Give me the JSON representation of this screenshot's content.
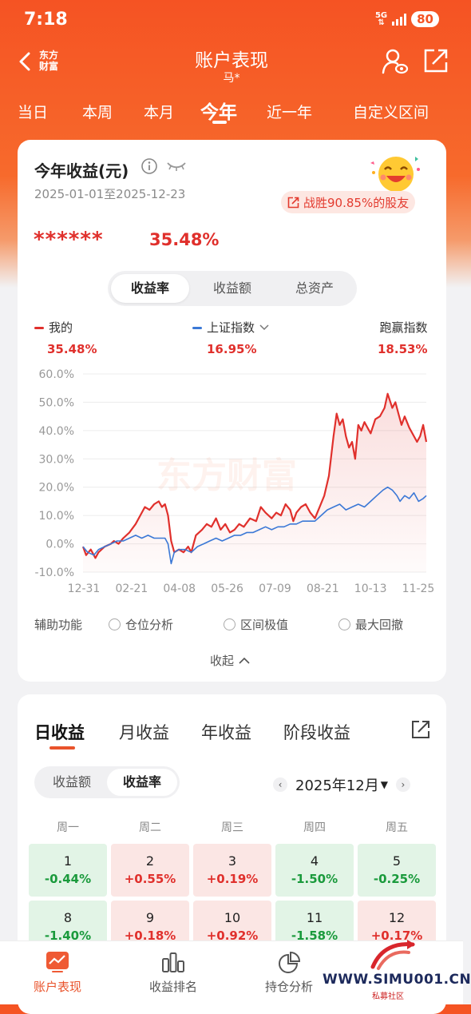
{
  "status": {
    "time": "7:18",
    "network": "5G",
    "battery": "80"
  },
  "nav": {
    "logo": "东方财富",
    "title": "账户表现",
    "subtitle": "马*"
  },
  "period_tabs": [
    {
      "label": "当日"
    },
    {
      "label": "本周"
    },
    {
      "label": "本月"
    },
    {
      "label": "今年"
    },
    {
      "label": "近一年"
    },
    {
      "label": "自定义区间"
    }
  ],
  "summary": {
    "title": "今年收益(元)",
    "date_range": "2025-01-01至2025-12-23",
    "beat_text": "战胜90.85%的股友",
    "masked_amount": "******",
    "return_pct": "35.48%"
  },
  "metric_toggle": [
    "收益率",
    "收益额",
    "总资产"
  ],
  "legend": [
    {
      "label": "我的",
      "value": "35.48%",
      "color": "#e0302c"
    },
    {
      "label": "上证指数",
      "value": "16.95%",
      "color": "#3b78d6"
    },
    {
      "label": "跑赢指数",
      "value": "18.53%"
    }
  ],
  "chart_data": {
    "type": "line",
    "y_tick_labels": [
      "60.0%",
      "50.0%",
      "40.0%",
      "30.0%",
      "20.0%",
      "10.0%",
      "0.0%",
      "-10.0%"
    ],
    "ylim": [
      -10,
      60
    ],
    "x_tick_labels": [
      "12-31",
      "02-21",
      "04-08",
      "05-26",
      "07-09",
      "08-21",
      "10-13",
      "11-25"
    ],
    "watermark": "东方财富",
    "series": [
      {
        "name": "我的",
        "color": "#e0302c",
        "points": [
          [
            0,
            -1
          ],
          [
            2,
            -4
          ],
          [
            5,
            -2
          ],
          [
            8,
            -5
          ],
          [
            10,
            -3
          ],
          [
            14,
            -1
          ],
          [
            18,
            0
          ],
          [
            20,
            1
          ],
          [
            23,
            0
          ],
          [
            26,
            2
          ],
          [
            30,
            4
          ],
          [
            34,
            7
          ],
          [
            37,
            10
          ],
          [
            40,
            13
          ],
          [
            43,
            12
          ],
          [
            46,
            14
          ],
          [
            49,
            15
          ],
          [
            51,
            13
          ],
          [
            53,
            14
          ],
          [
            55,
            10
          ],
          [
            57,
            1
          ],
          [
            59,
            -3
          ],
          [
            62,
            -2
          ],
          [
            65,
            -3
          ],
          [
            68,
            -1
          ],
          [
            70,
            -3
          ],
          [
            73,
            3
          ],
          [
            77,
            5
          ],
          [
            80,
            7
          ],
          [
            83,
            6
          ],
          [
            86,
            9
          ],
          [
            89,
            5
          ],
          [
            92,
            7
          ],
          [
            95,
            4
          ],
          [
            98,
            5
          ],
          [
            101,
            7
          ],
          [
            104,
            6
          ],
          [
            108,
            9
          ],
          [
            112,
            8
          ],
          [
            115,
            13
          ],
          [
            118,
            11
          ],
          [
            122,
            9
          ],
          [
            125,
            11
          ],
          [
            128,
            10
          ],
          [
            131,
            14
          ],
          [
            134,
            12
          ],
          [
            136,
            8
          ],
          [
            138,
            11
          ],
          [
            141,
            13
          ],
          [
            144,
            14
          ],
          [
            147,
            11
          ],
          [
            150,
            9
          ],
          [
            153,
            13
          ],
          [
            156,
            17
          ],
          [
            159,
            24
          ],
          [
            162,
            38
          ],
          [
            164,
            46
          ],
          [
            166,
            42
          ],
          [
            168,
            44
          ],
          [
            170,
            38
          ],
          [
            172,
            34
          ],
          [
            174,
            36
          ],
          [
            176,
            30
          ],
          [
            178,
            42
          ],
          [
            180,
            40
          ],
          [
            182,
            43
          ],
          [
            184,
            41
          ],
          [
            186,
            39
          ],
          [
            189,
            44
          ],
          [
            192,
            45
          ],
          [
            195,
            48
          ],
          [
            197,
            53
          ],
          [
            200,
            48
          ],
          [
            202,
            50
          ],
          [
            204,
            46
          ],
          [
            206,
            42
          ],
          [
            208,
            45
          ],
          [
            211,
            41
          ],
          [
            214,
            38
          ],
          [
            216,
            36
          ],
          [
            218,
            38
          ],
          [
            220,
            42
          ],
          [
            222,
            36
          ]
        ]
      },
      {
        "name": "上证指数",
        "color": "#3b78d6",
        "points": [
          [
            0,
            -1
          ],
          [
            3,
            -3
          ],
          [
            7,
            -4
          ],
          [
            10,
            -2
          ],
          [
            14,
            -1
          ],
          [
            18,
            0
          ],
          [
            22,
            1
          ],
          [
            26,
            1
          ],
          [
            30,
            2
          ],
          [
            34,
            3
          ],
          [
            38,
            2
          ],
          [
            42,
            3
          ],
          [
            46,
            2
          ],
          [
            50,
            2
          ],
          [
            53,
            2
          ],
          [
            55,
            0
          ],
          [
            57,
            -7
          ],
          [
            59,
            -3
          ],
          [
            62,
            -2
          ],
          [
            66,
            -2
          ],
          [
            70,
            -3
          ],
          [
            74,
            -1
          ],
          [
            78,
            0
          ],
          [
            82,
            1
          ],
          [
            86,
            2
          ],
          [
            90,
            1
          ],
          [
            94,
            2
          ],
          [
            98,
            3
          ],
          [
            102,
            3
          ],
          [
            106,
            4
          ],
          [
            110,
            4
          ],
          [
            114,
            5
          ],
          [
            118,
            6
          ],
          [
            122,
            5
          ],
          [
            126,
            6
          ],
          [
            130,
            6
          ],
          [
            134,
            7
          ],
          [
            138,
            7
          ],
          [
            142,
            8
          ],
          [
            146,
            8
          ],
          [
            150,
            8
          ],
          [
            154,
            10
          ],
          [
            158,
            12
          ],
          [
            162,
            13
          ],
          [
            166,
            14
          ],
          [
            170,
            12
          ],
          [
            174,
            13
          ],
          [
            178,
            14
          ],
          [
            182,
            13
          ],
          [
            186,
            15
          ],
          [
            190,
            17
          ],
          [
            194,
            19
          ],
          [
            197,
            20
          ],
          [
            200,
            19
          ],
          [
            203,
            17
          ],
          [
            205,
            15
          ],
          [
            208,
            17
          ],
          [
            211,
            16
          ],
          [
            214,
            18
          ],
          [
            217,
            15
          ],
          [
            220,
            16
          ],
          [
            222,
            17
          ]
        ]
      }
    ]
  },
  "aux": {
    "label": "辅助功能",
    "options": [
      "仓位分析",
      "区间极值",
      "最大回撤"
    ],
    "collapse": "收起"
  },
  "returns": {
    "tabs": [
      "日收益",
      "月收益",
      "年收益",
      "阶段收益"
    ],
    "toggle": [
      "收益额",
      "收益率"
    ],
    "month": "2025年12月",
    "weekdays": [
      "周一",
      "周二",
      "周三",
      "周四",
      "周五"
    ],
    "cells": [
      {
        "day": "1",
        "value": "-0.44%",
        "sign": "neg"
      },
      {
        "day": "2",
        "value": "+0.55%",
        "sign": "pos"
      },
      {
        "day": "3",
        "value": "+0.19%",
        "sign": "pos"
      },
      {
        "day": "4",
        "value": "-1.50%",
        "sign": "neg"
      },
      {
        "day": "5",
        "value": "-0.25%",
        "sign": "neg"
      },
      {
        "day": "8",
        "value": "-1.40%",
        "sign": "neg"
      },
      {
        "day": "9",
        "value": "+0.18%",
        "sign": "pos"
      },
      {
        "day": "10",
        "value": "+0.92%",
        "sign": "pos"
      },
      {
        "day": "11",
        "value": "-1.58%",
        "sign": "neg"
      },
      {
        "day": "12",
        "value": "+0.17%",
        "sign": "pos"
      }
    ]
  },
  "bottom_nav": [
    {
      "label": "账户表现"
    },
    {
      "label": "收益排名"
    },
    {
      "label": "持仓分析"
    }
  ],
  "watermark_site": {
    "text": "WWW.SIMU001.CN",
    "sub": "私募社区"
  }
}
